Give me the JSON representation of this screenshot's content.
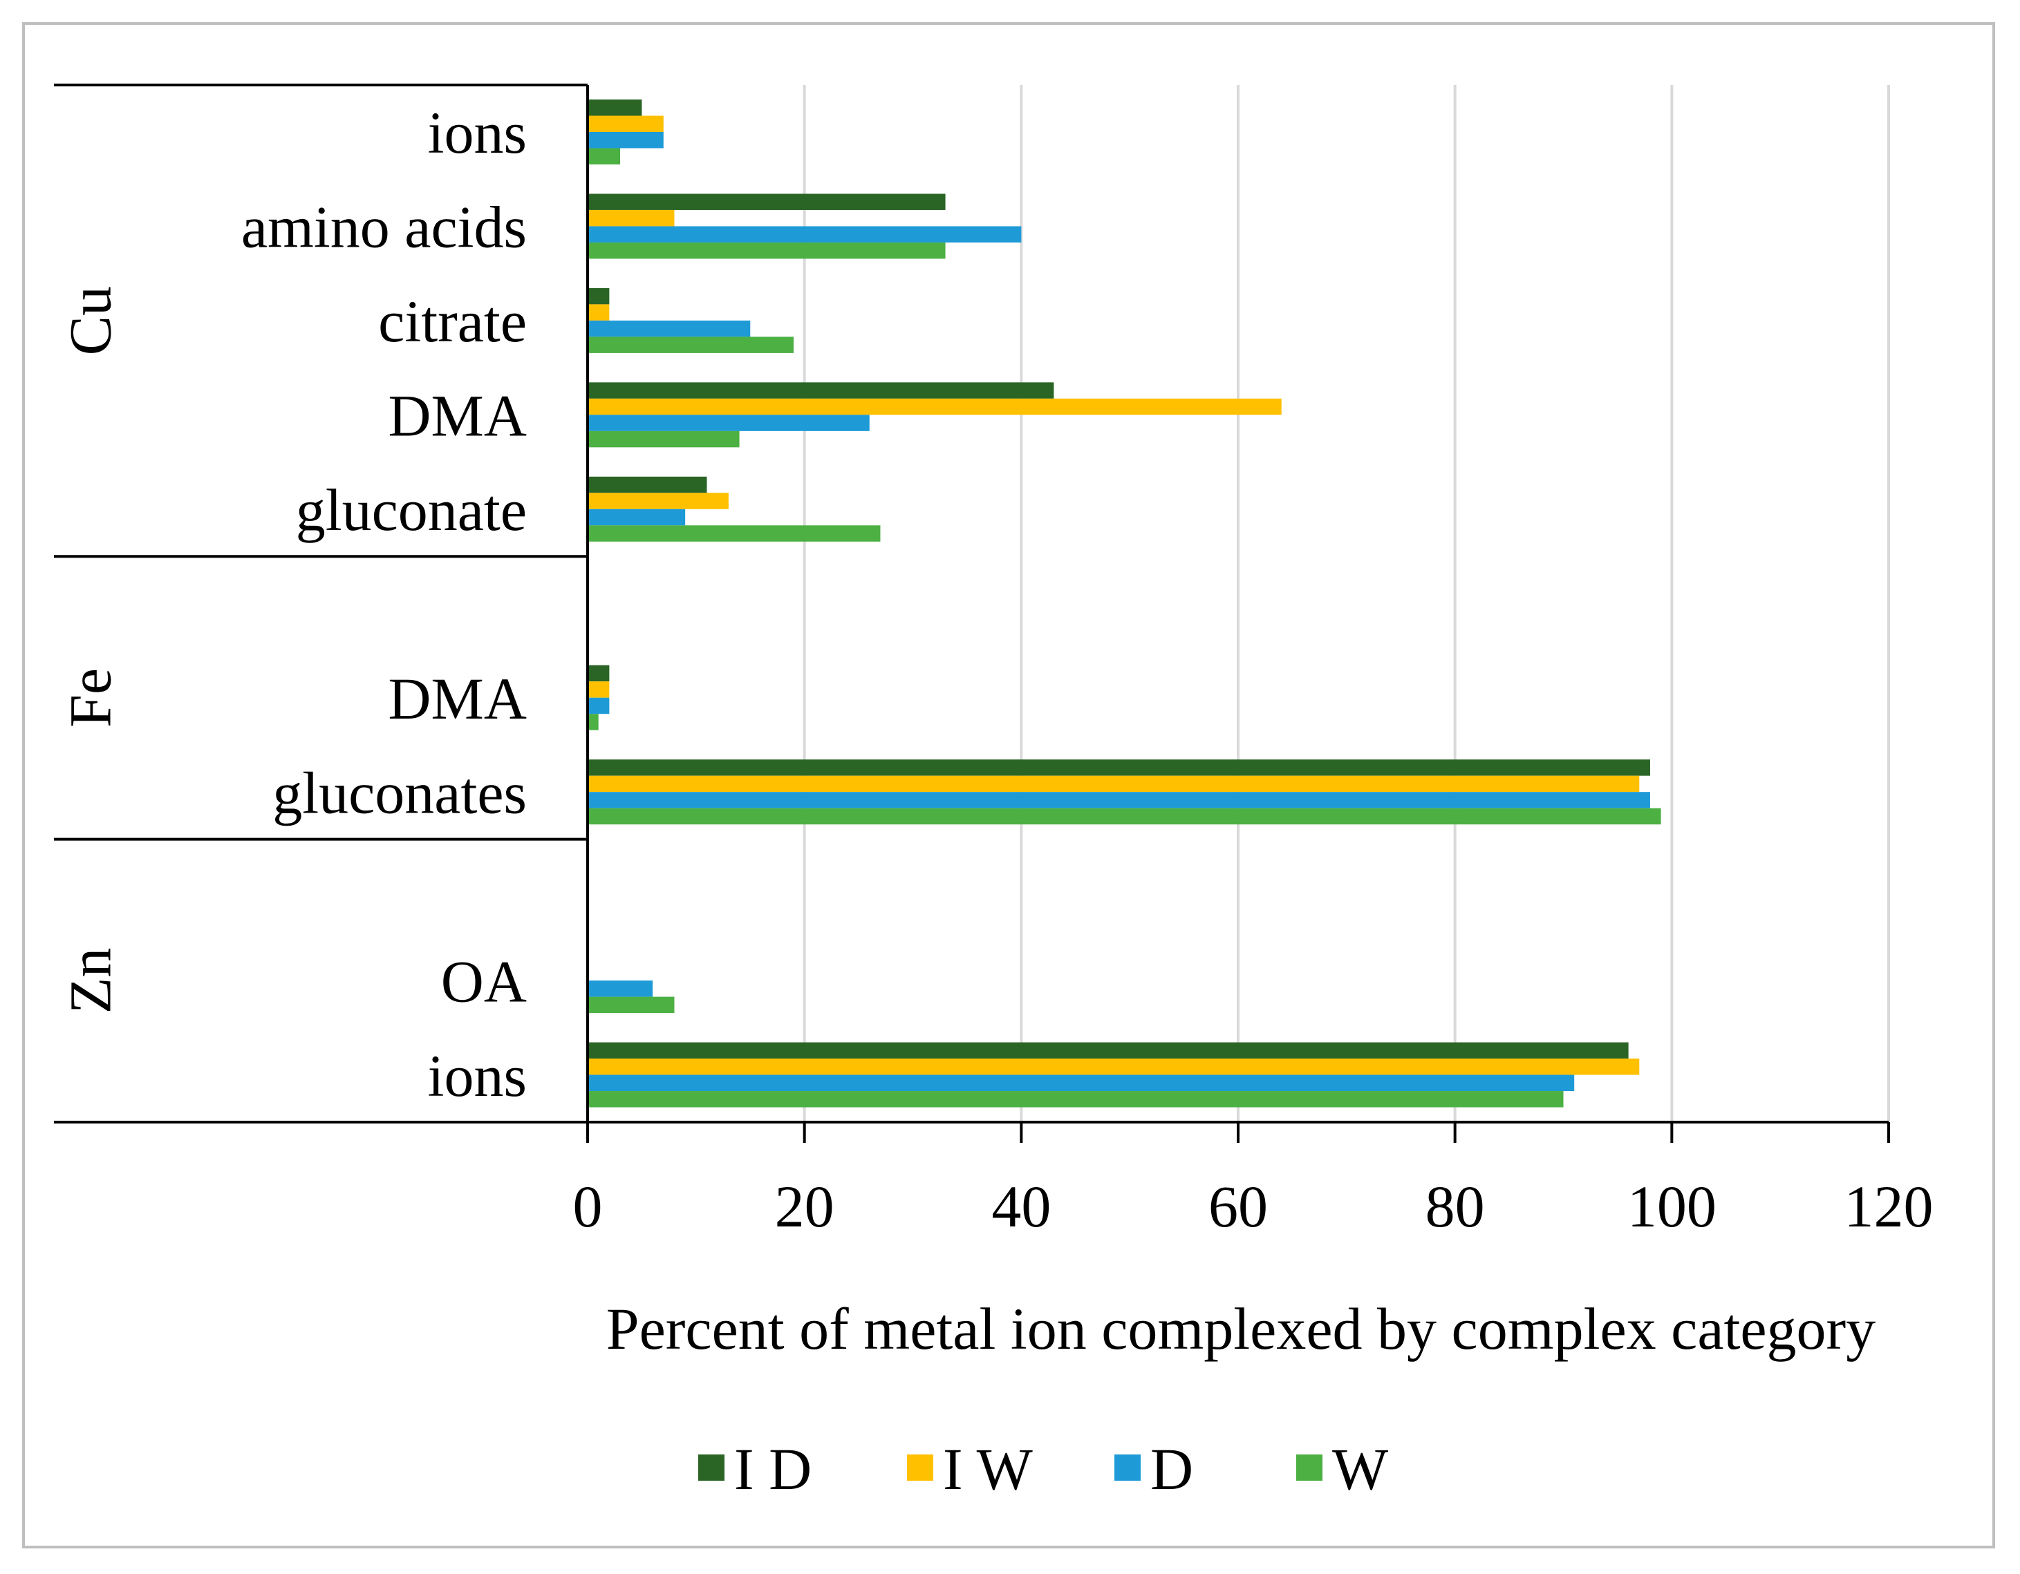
{
  "chart_data": {
    "type": "bar",
    "orientation": "horizontal",
    "title": "",
    "xlabel": "Percent of metal ion complexed by complex category",
    "ylabel": "",
    "xlim": [
      0,
      120
    ],
    "xticks": [
      0,
      20,
      40,
      60,
      80,
      100,
      120
    ],
    "grid": true,
    "legend_position": "bottom",
    "groups": [
      {
        "name": "Cu",
        "categories": [
          "ions",
          "amino acids",
          "citrate",
          "DMA",
          "gluconate"
        ]
      },
      {
        "name": "Fe",
        "categories": [
          "",
          "DMA",
          "gluconates"
        ]
      },
      {
        "name": "Zn",
        "categories": [
          "",
          "OA",
          "ions"
        ]
      }
    ],
    "series": [
      {
        "name": "I D",
        "color": "#2a6525",
        "values": [
          5,
          33,
          2,
          43,
          11,
          null,
          2,
          98,
          null,
          0,
          96
        ]
      },
      {
        "name": "I W",
        "color": "#ffc000",
        "values": [
          7,
          8,
          2,
          64,
          13,
          null,
          2,
          97,
          null,
          0,
          97
        ]
      },
      {
        "name": "D",
        "color": "#1e9bd7",
        "values": [
          7,
          40,
          15,
          26,
          9,
          null,
          2,
          98,
          null,
          6,
          91
        ]
      },
      {
        "name": "W",
        "color": "#4cb043",
        "values": [
          3,
          33,
          19,
          14,
          27,
          null,
          1,
          99,
          null,
          8,
          90
        ]
      }
    ]
  }
}
